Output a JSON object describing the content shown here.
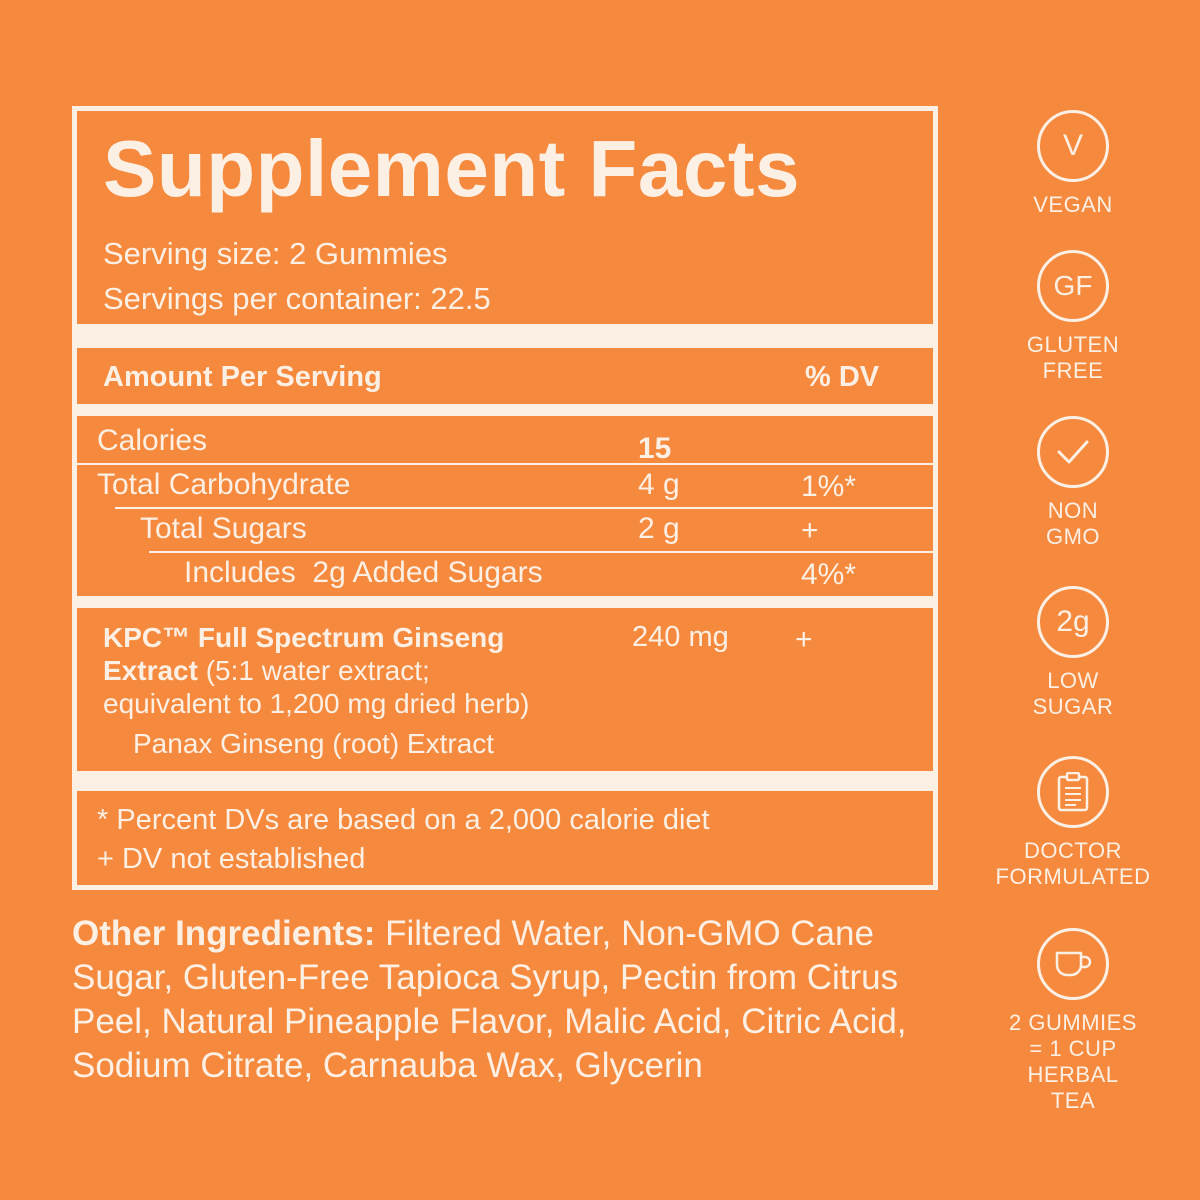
{
  "panel": {
    "title": "Supplement Facts",
    "serving_size": "Serving size: 2 Gummies",
    "servings_per_container": "Servings per container: 22.5",
    "amount_header": "Amount Per Serving",
    "dv_header": "% DV",
    "rows": [
      {
        "name": "Calories",
        "amount": "15",
        "dv": ""
      },
      {
        "name": "Total Carbohydrate",
        "amount": "4 g",
        "dv": "1%*"
      },
      {
        "name": "Total Sugars",
        "amount": "2 g",
        "dv": "+"
      },
      {
        "name": "Includes  2g Added Sugars",
        "amount": "",
        "dv": "4%*"
      }
    ],
    "kpc": {
      "name_bold_1": "KPC™ Full Spectrum Ginseng",
      "name_bold_2": "Extract",
      "name_rest": " (5:1 water extract;",
      "line3": "equivalent to 1,200 mg dried herb)",
      "sub": "Panax Ginseng (root) Extract",
      "amount": "240 mg",
      "dv": "+"
    },
    "footnotes": [
      "* Percent DVs are based on a 2,000 calorie diet",
      "+ DV not established"
    ]
  },
  "other_ingredients": {
    "label": "Other Ingredients:",
    "text": " Filtered Water, Non-GMO Cane Sugar, Gluten-Free Tapioca Syrup, Pectin from Citrus Peel, Natural Pineapple Flavor, Malic Acid, Citric Acid, Sodium Citrate, Carnauba Wax, Glycerin"
  },
  "badges": [
    {
      "icon": "vegan-icon",
      "glyph": "V",
      "label": "VEGAN"
    },
    {
      "icon": "gluten-free-icon",
      "glyph": "GF",
      "label": "GLUTEN FREE"
    },
    {
      "icon": "check-icon",
      "glyph": "",
      "label": "NON GMO"
    },
    {
      "icon": "low-sugar-icon",
      "glyph": "2g",
      "label": "LOW SUGAR"
    },
    {
      "icon": "clipboard-icon",
      "glyph": "",
      "label": "DOCTOR FORMULATED"
    },
    {
      "icon": "tea-cup-icon",
      "glyph": "",
      "label": "2 GUMMIES = 1 CUP HERBAL TEA"
    }
  ],
  "colors": {
    "background": "#F58A3E",
    "foreground": "#FCEFE4"
  }
}
